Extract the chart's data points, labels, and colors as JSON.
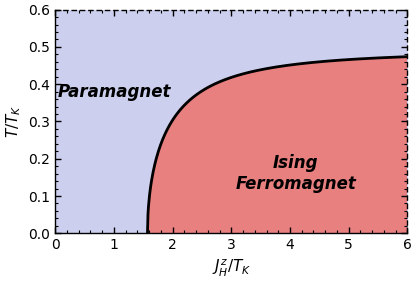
{
  "xlim": [
    0,
    6
  ],
  "ylim": [
    0,
    0.6
  ],
  "xticks": [
    0,
    1,
    2,
    3,
    4,
    5,
    6
  ],
  "yticks": [
    0.0,
    0.1,
    0.2,
    0.3,
    0.4,
    0.5,
    0.6
  ],
  "paramagnet_color": "#ccd0ee",
  "ferromagnet_color": "#e88080",
  "boundary_color": "#000000",
  "boundary_linewidth": 2.0,
  "xlabel": "$J^z_H/T_K$",
  "ylabel": "$T/T_K$",
  "paramagnet_label": "Paramagnet",
  "ferromagnet_label": "Ising\nFerromagnet",
  "label_fontsize": 12,
  "axis_fontsize": 11,
  "tick_fontsize": 10,
  "figsize": [
    4.16,
    2.83
  ],
  "dpi": 100,
  "J_c0": 1.5708,
  "T_inf": 0.474,
  "curve_alpha": 1.4
}
